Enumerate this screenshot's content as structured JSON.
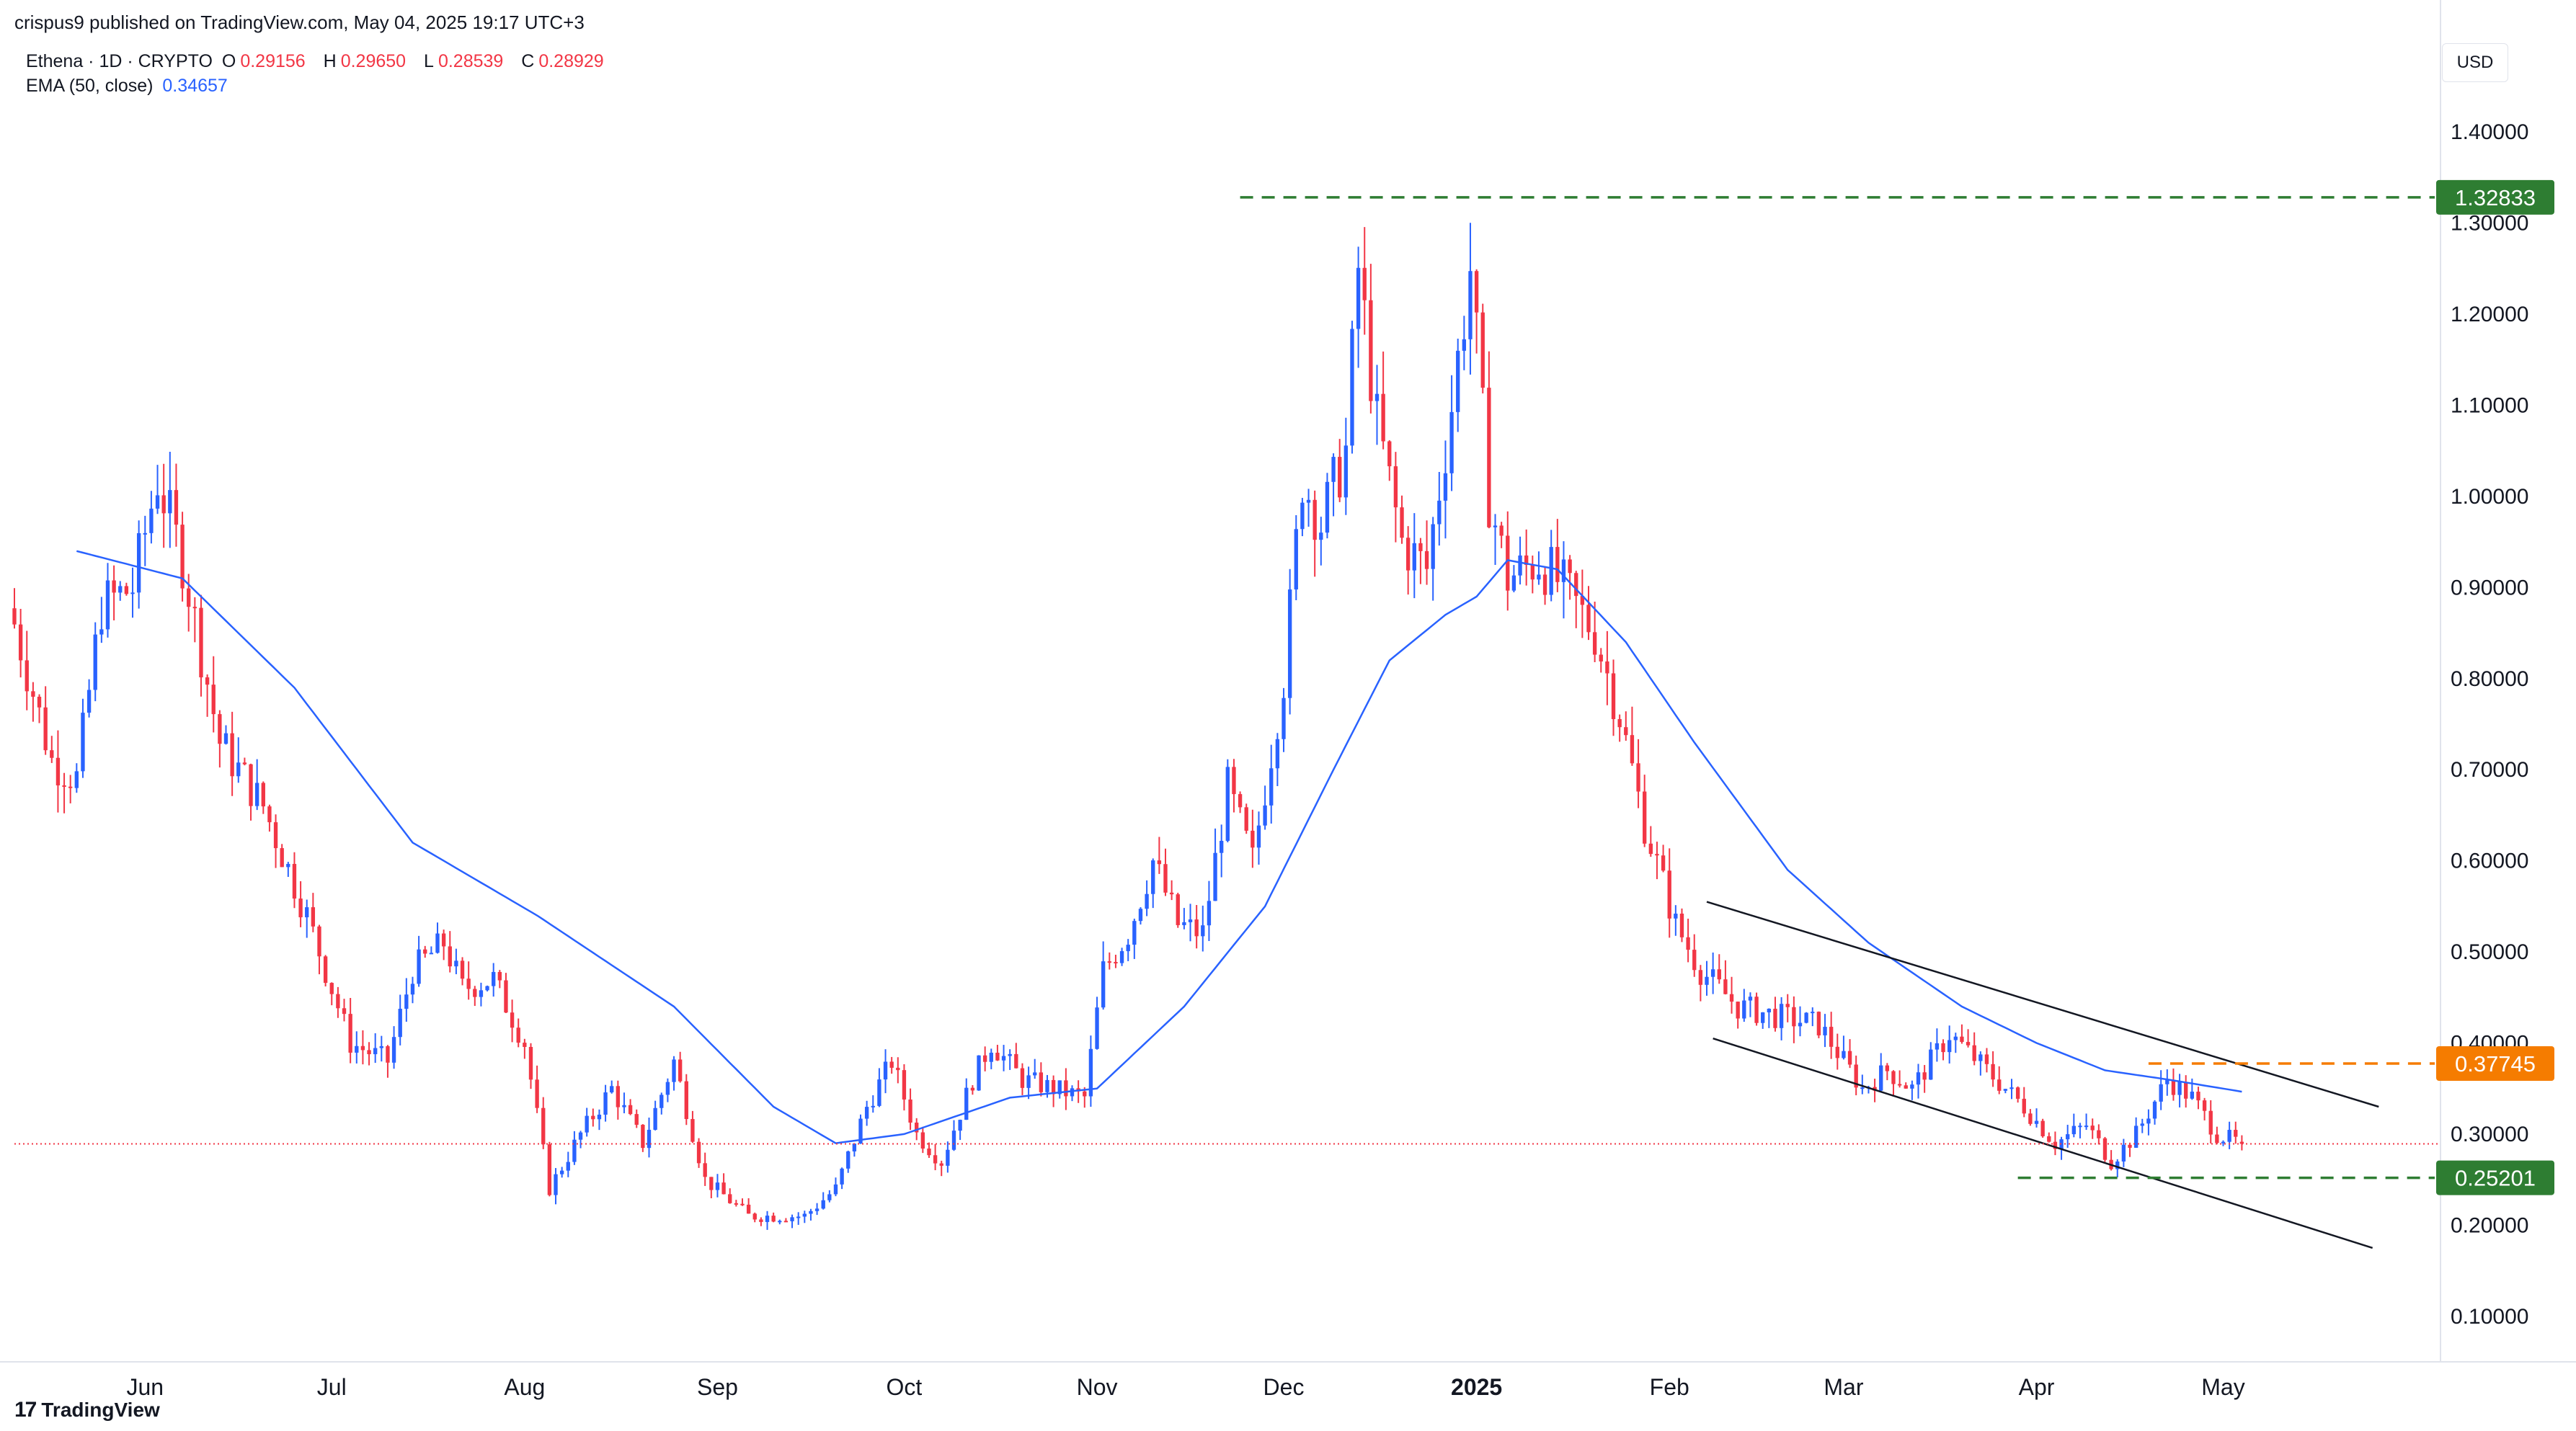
{
  "header": {
    "publisher": "crispus9 published on TradingView.com, May 04, 2025 19:17 UTC+3"
  },
  "legend": {
    "symbol": "Ethena · 1D · CRYPTO",
    "open_label": "O",
    "open": "0.29156",
    "high_label": "H",
    "high": "0.29650",
    "low_label": "L",
    "low": "0.28539",
    "close_label": "C",
    "close": "0.28929",
    "ema_label": "EMA (50, close)",
    "ema_value": "0.34657"
  },
  "currency": "USD",
  "footer": {
    "brand": "TradingView",
    "logo_glyph": "17"
  },
  "colors": {
    "up": "#2962ff",
    "down": "#f23645",
    "ema": "#2962ff",
    "level_green": "#2e7d32",
    "level_orange": "#f57c00",
    "text": "#131722"
  },
  "chart_data": {
    "type": "candlestick",
    "ylim": [
      0.05,
      1.45
    ],
    "y_ticks": [
      "1.40000",
      "1.30000",
      "1.20000",
      "1.10000",
      "1.00000",
      "0.90000",
      "0.80000",
      "0.70000",
      "0.60000",
      "0.50000",
      "0.40000",
      "0.30000",
      "0.20000",
      "0.10000"
    ],
    "x_ticks": [
      {
        "label": "Jun",
        "date": "2024-06-01"
      },
      {
        "label": "Jul",
        "date": "2024-07-01"
      },
      {
        "label": "Aug",
        "date": "2024-08-01"
      },
      {
        "label": "Sep",
        "date": "2024-09-01"
      },
      {
        "label": "Oct",
        "date": "2024-10-01"
      },
      {
        "label": "Nov",
        "date": "2024-11-01"
      },
      {
        "label": "Dec",
        "date": "2024-12-01"
      },
      {
        "label": "2025",
        "date": "2025-01-01",
        "bold": true
      },
      {
        "label": "Feb",
        "date": "2025-02-01"
      },
      {
        "label": "Mar",
        "date": "2025-03-01"
      },
      {
        "label": "Apr",
        "date": "2025-04-01"
      },
      {
        "label": "May",
        "date": "2025-05-01"
      }
    ],
    "x_range": [
      "2024-05-11",
      "2025-06-04"
    ],
    "close_anchors": [
      [
        "2024-05-11",
        0.86
      ],
      [
        "2024-05-17",
        0.71
      ],
      [
        "2024-05-21",
        0.69
      ],
      [
        "2024-05-25",
        0.88
      ],
      [
        "2024-05-30",
        0.9
      ],
      [
        "2024-06-03",
        1.02
      ],
      [
        "2024-06-07",
        0.93
      ],
      [
        "2024-06-13",
        0.73
      ],
      [
        "2024-06-20",
        0.66
      ],
      [
        "2024-06-27",
        0.54
      ],
      [
        "2024-07-04",
        0.4
      ],
      [
        "2024-07-10",
        0.38
      ],
      [
        "2024-07-14",
        0.48
      ],
      [
        "2024-07-19",
        0.51
      ],
      [
        "2024-07-22",
        0.46
      ],
      [
        "2024-07-27",
        0.47
      ],
      [
        "2024-08-01",
        0.4
      ],
      [
        "2024-08-05",
        0.24
      ],
      [
        "2024-08-10",
        0.3
      ],
      [
        "2024-08-15",
        0.35
      ],
      [
        "2024-08-20",
        0.29
      ],
      [
        "2024-08-25",
        0.38
      ],
      [
        "2024-08-30",
        0.25
      ],
      [
        "2024-09-06",
        0.21
      ],
      [
        "2024-09-15",
        0.21
      ],
      [
        "2024-09-20",
        0.24
      ],
      [
        "2024-09-25",
        0.33
      ],
      [
        "2024-09-29",
        0.38
      ],
      [
        "2024-10-03",
        0.3
      ],
      [
        "2024-10-07",
        0.27
      ],
      [
        "2024-10-12",
        0.36
      ],
      [
        "2024-10-15",
        0.4
      ],
      [
        "2024-10-20",
        0.36
      ],
      [
        "2024-10-25",
        0.35
      ],
      [
        "2024-10-30",
        0.34
      ],
      [
        "2024-11-02",
        0.48
      ],
      [
        "2024-11-06",
        0.52
      ],
      [
        "2024-11-10",
        0.6
      ],
      [
        "2024-11-14",
        0.53
      ],
      [
        "2024-11-18",
        0.52
      ],
      [
        "2024-11-22",
        0.68
      ],
      [
        "2024-11-26",
        0.6
      ],
      [
        "2024-12-01",
        0.8
      ],
      [
        "2024-12-04",
        1.02
      ],
      [
        "2024-12-07",
        0.97
      ],
      [
        "2024-12-11",
        1.05
      ],
      [
        "2024-12-13",
        1.25
      ],
      [
        "2024-12-16",
        1.08
      ],
      [
        "2024-12-20",
        0.95
      ],
      [
        "2024-12-24",
        0.92
      ],
      [
        "2024-12-28",
        1.1
      ],
      [
        "2024-12-31",
        1.25
      ],
      [
        "2025-01-03",
        1.0
      ],
      [
        "2025-01-06",
        0.91
      ],
      [
        "2025-01-11",
        0.93
      ],
      [
        "2025-01-15",
        0.9
      ],
      [
        "2025-01-20",
        0.85
      ],
      [
        "2025-01-24",
        0.76
      ],
      [
        "2025-01-28",
        0.64
      ],
      [
        "2025-02-02",
        0.53
      ],
      [
        "2025-02-06",
        0.48
      ],
      [
        "2025-02-12",
        0.44
      ],
      [
        "2025-02-18",
        0.43
      ],
      [
        "2025-02-25",
        0.42
      ],
      [
        "2025-03-04",
        0.35
      ],
      [
        "2025-03-08",
        0.37
      ],
      [
        "2025-03-12",
        0.35
      ],
      [
        "2025-03-18",
        0.41
      ],
      [
        "2025-03-24",
        0.37
      ],
      [
        "2025-03-30",
        0.33
      ],
      [
        "2025-04-04",
        0.29
      ],
      [
        "2025-04-09",
        0.31
      ],
      [
        "2025-04-13",
        0.27
      ],
      [
        "2025-04-17",
        0.3
      ],
      [
        "2025-04-22",
        0.36
      ],
      [
        "2025-04-26",
        0.34
      ],
      [
        "2025-04-30",
        0.3
      ],
      [
        "2025-05-04",
        0.2893
      ]
    ],
    "ema_anchors": [
      [
        "2024-05-21",
        0.94
      ],
      [
        "2024-06-07",
        0.91
      ],
      [
        "2024-06-25",
        0.79
      ],
      [
        "2024-07-14",
        0.62
      ],
      [
        "2024-08-03",
        0.54
      ],
      [
        "2024-08-25",
        0.44
      ],
      [
        "2024-09-10",
        0.33
      ],
      [
        "2024-09-20",
        0.29
      ],
      [
        "2024-10-01",
        0.3
      ],
      [
        "2024-10-18",
        0.34
      ],
      [
        "2024-11-01",
        0.35
      ],
      [
        "2024-11-15",
        0.44
      ],
      [
        "2024-11-28",
        0.55
      ],
      [
        "2024-12-09",
        0.7
      ],
      [
        "2024-12-18",
        0.82
      ],
      [
        "2024-12-27",
        0.87
      ],
      [
        "2025-01-01",
        0.89
      ],
      [
        "2025-01-06",
        0.93
      ],
      [
        "2025-01-14",
        0.92
      ],
      [
        "2025-01-25",
        0.84
      ],
      [
        "2025-02-05",
        0.73
      ],
      [
        "2025-02-20",
        0.59
      ],
      [
        "2025-03-05",
        0.51
      ],
      [
        "2025-03-20",
        0.44
      ],
      [
        "2025-04-01",
        0.4
      ],
      [
        "2025-04-12",
        0.37
      ],
      [
        "2025-04-22",
        0.36
      ],
      [
        "2025-05-04",
        0.34657
      ]
    ],
    "channel_lines": [
      {
        "name": "upper",
        "from": [
          "2025-02-07",
          0.555
        ],
        "to": [
          "2025-05-26",
          0.33
        ]
      },
      {
        "name": "lower",
        "from": [
          "2025-02-08",
          0.405
        ],
        "to": [
          "2025-05-25",
          0.175
        ]
      }
    ],
    "levels": [
      {
        "value": 1.32833,
        "label": "1.32833",
        "from": "2024-11-24",
        "color": "green",
        "style": "dashed"
      },
      {
        "value": 0.37745,
        "label": "0.37745",
        "from": "2025-04-19",
        "color": "orange",
        "style": "dashed"
      },
      {
        "value": 0.25201,
        "label": "0.25201",
        "from": "2025-03-29",
        "color": "green",
        "style": "dashed"
      }
    ],
    "last_price": 0.28929
  }
}
